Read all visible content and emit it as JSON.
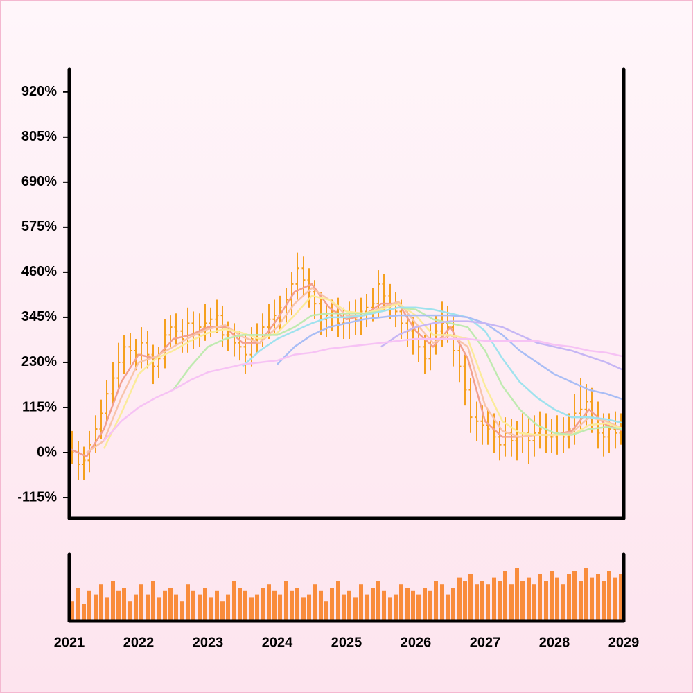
{
  "chart_data": {
    "type": "ohlc",
    "xlim": [
      2021,
      2029
    ],
    "xticks": [
      2021,
      2022,
      2023,
      2024,
      2025,
      2026,
      2027,
      2028,
      2029
    ],
    "ylim": [
      -168,
      978
    ],
    "yticks": [
      {
        "value": -115,
        "label": "-115%"
      },
      {
        "value": 0,
        "label": "0%"
      },
      {
        "value": 115,
        "label": "115%"
      },
      {
        "value": 230,
        "label": "230%"
      },
      {
        "value": 345,
        "label": "345%"
      },
      {
        "value": 460,
        "label": "460%"
      },
      {
        "value": 575,
        "label": "575%"
      },
      {
        "value": 690,
        "label": "690%"
      },
      {
        "value": 805,
        "label": "805%"
      },
      {
        "value": 920,
        "label": "920%"
      }
    ],
    "vlim": [
      0,
      100
    ],
    "color": "#f5a01e",
    "volume_color": "#f98c3c",
    "x": [
      2021.04,
      2021.13,
      2021.21,
      2021.29,
      2021.38,
      2021.46,
      2021.54,
      2021.63,
      2021.71,
      2021.79,
      2021.88,
      2021.96,
      2022.04,
      2022.13,
      2022.21,
      2022.29,
      2022.38,
      2022.46,
      2022.54,
      2022.63,
      2022.71,
      2022.79,
      2022.88,
      2022.96,
      2023.04,
      2023.13,
      2023.21,
      2023.29,
      2023.38,
      2023.46,
      2023.54,
      2023.63,
      2023.71,
      2023.79,
      2023.88,
      2023.96,
      2024.04,
      2024.13,
      2024.21,
      2024.29,
      2024.38,
      2024.46,
      2024.54,
      2024.63,
      2024.71,
      2024.79,
      2024.88,
      2024.96,
      2025.04,
      2025.13,
      2025.21,
      2025.29,
      2025.38,
      2025.46,
      2025.54,
      2025.63,
      2025.71,
      2025.79,
      2025.88,
      2025.96,
      2026.04,
      2026.13,
      2026.21,
      2026.29,
      2026.38,
      2026.46,
      2026.54,
      2026.63,
      2026.71,
      2026.79,
      2026.88,
      2026.96,
      2027.04,
      2027.13,
      2027.21,
      2027.29,
      2027.38,
      2027.46,
      2027.54,
      2027.63,
      2027.71,
      2027.79,
      2027.88,
      2027.96,
      2028.04,
      2028.13,
      2028.21,
      2028.29,
      2028.38,
      2028.46,
      2028.54,
      2028.63,
      2028.71,
      2028.79,
      2028.88,
      2028.96
    ],
    "open": [
      20,
      0,
      -30,
      -20,
      20,
      60,
      100,
      150,
      190,
      230,
      270,
      260,
      250,
      280,
      250,
      220,
      240,
      300,
      320,
      310,
      290,
      330,
      300,
      320,
      330,
      340,
      350,
      300,
      300,
      280,
      270,
      250,
      290,
      300,
      320,
      340,
      350,
      370,
      390,
      430,
      470,
      440,
      410,
      380,
      340,
      350,
      360,
      330,
      330,
      350,
      340,
      360,
      370,
      380,
      430,
      400,
      380,
      360,
      330,
      310,
      290,
      270,
      240,
      290,
      310,
      330,
      320,
      260,
      220,
      160,
      90,
      80,
      70,
      60,
      40,
      20,
      50,
      30,
      40,
      50,
      30,
      50,
      60,
      40,
      40,
      50,
      40,
      60,
      100,
      110,
      130,
      90,
      50,
      40,
      60,
      50
    ],
    "high": [
      55,
      30,
      15,
      55,
      95,
      135,
      185,
      230,
      280,
      300,
      305,
      290,
      320,
      310,
      275,
      270,
      340,
      350,
      355,
      340,
      370,
      360,
      355,
      380,
      370,
      390,
      375,
      335,
      330,
      310,
      300,
      320,
      330,
      355,
      380,
      390,
      400,
      420,
      460,
      510,
      500,
      470,
      440,
      410,
      380,
      390,
      395,
      370,
      385,
      390,
      395,
      405,
      420,
      465,
      455,
      430,
      410,
      390,
      360,
      345,
      320,
      300,
      330,
      350,
      385,
      375,
      350,
      290,
      250,
      190,
      130,
      120,
      110,
      100,
      80,
      90,
      85,
      80,
      100,
      90,
      95,
      105,
      100,
      85,
      95,
      90,
      100,
      150,
      190,
      175,
      165,
      130,
      100,
      100,
      105,
      100
    ],
    "low": [
      -30,
      -70,
      -70,
      -50,
      0,
      35,
      80,
      120,
      165,
      200,
      225,
      210,
      215,
      215,
      175,
      190,
      215,
      265,
      275,
      255,
      255,
      265,
      270,
      285,
      295,
      305,
      270,
      260,
      245,
      235,
      200,
      220,
      255,
      270,
      290,
      305,
      310,
      330,
      350,
      390,
      400,
      370,
      340,
      300,
      295,
      310,
      295,
      290,
      290,
      300,
      300,
      320,
      335,
      345,
      360,
      340,
      320,
      290,
      270,
      250,
      230,
      200,
      210,
      250,
      270,
      280,
      220,
      180,
      120,
      50,
      30,
      20,
      20,
      0,
      -20,
      -10,
      -10,
      -20,
      0,
      -30,
      -10,
      10,
      0,
      0,
      -5,
      0,
      10,
      20,
      60,
      70,
      50,
      10,
      -10,
      0,
      10,
      20
    ],
    "close": [
      0,
      -30,
      -20,
      20,
      60,
      100,
      150,
      190,
      230,
      270,
      260,
      250,
      280,
      250,
      220,
      240,
      300,
      320,
      310,
      290,
      330,
      300,
      320,
      330,
      340,
      350,
      300,
      300,
      280,
      270,
      250,
      290,
      300,
      320,
      340,
      350,
      370,
      390,
      430,
      470,
      440,
      410,
      380,
      340,
      350,
      360,
      330,
      330,
      350,
      340,
      360,
      370,
      380,
      430,
      400,
      380,
      360,
      330,
      310,
      290,
      270,
      240,
      290,
      310,
      330,
      320,
      260,
      220,
      160,
      90,
      80,
      70,
      60,
      40,
      20,
      50,
      30,
      40,
      50,
      30,
      50,
      60,
      40,
      40,
      50,
      40,
      60,
      100,
      110,
      130,
      90,
      50,
      40,
      60,
      50,
      60
    ],
    "volume": [
      30,
      50,
      25,
      45,
      40,
      55,
      35,
      60,
      45,
      50,
      30,
      40,
      55,
      40,
      60,
      35,
      45,
      50,
      40,
      30,
      55,
      45,
      40,
      50,
      35,
      45,
      30,
      40,
      60,
      50,
      45,
      35,
      40,
      50,
      55,
      45,
      40,
      60,
      45,
      50,
      35,
      40,
      55,
      45,
      30,
      50,
      60,
      40,
      45,
      35,
      55,
      40,
      50,
      60,
      45,
      35,
      40,
      55,
      50,
      45,
      40,
      50,
      45,
      60,
      55,
      40,
      50,
      65,
      60,
      70,
      55,
      60,
      55,
      65,
      60,
      75,
      55,
      80,
      60,
      65,
      55,
      70,
      60,
      75,
      65,
      55,
      70,
      75,
      60,
      80,
      65,
      70,
      60,
      75,
      65,
      70
    ],
    "ma_x": [
      2021,
      2021.25,
      2021.5,
      2021.75,
      2022,
      2022.25,
      2022.5,
      2022.75,
      2023,
      2023.25,
      2023.5,
      2023.75,
      2024,
      2024.25,
      2024.5,
      2024.75,
      2025,
      2025.25,
      2025.5,
      2025.75,
      2026,
      2026.25,
      2026.5,
      2026.75,
      2027,
      2027.25,
      2027.5,
      2027.75,
      2028,
      2028.25,
      2028.5,
      2028.75,
      2029
    ],
    "moving_averages": [
      {
        "color": "#f2a08e",
        "values": [
          10,
          -10,
          60,
          180,
          250,
          240,
          290,
          300,
          320,
          320,
          280,
          280,
          340,
          410,
          430,
          370,
          340,
          350,
          380,
          380,
          310,
          270,
          320,
          240,
          80,
          40,
          40,
          45,
          45,
          55,
          110,
          70,
          55
        ]
      },
      {
        "color": "#f8c4aa",
        "values": [
          null,
          0,
          30,
          140,
          230,
          245,
          270,
          295,
          315,
          325,
          295,
          280,
          320,
          380,
          420,
          390,
          350,
          350,
          370,
          385,
          330,
          280,
          300,
          270,
          120,
          55,
          40,
          45,
          45,
          50,
          90,
          80,
          60
        ]
      },
      {
        "color": "#fbeb9a",
        "values": [
          null,
          null,
          10,
          100,
          200,
          240,
          260,
          285,
          305,
          315,
          305,
          290,
          305,
          350,
          400,
          390,
          360,
          355,
          365,
          380,
          350,
          300,
          300,
          290,
          170,
          80,
          50,
          45,
          45,
          45,
          70,
          75,
          60
        ]
      },
      {
        "color": "#bfeab0",
        "values": [
          null,
          null,
          null,
          null,
          null,
          null,
          160,
          220,
          270,
          290,
          300,
          300,
          300,
          320,
          350,
          355,
          355,
          355,
          360,
          370,
          365,
          340,
          330,
          320,
          260,
          170,
          110,
          70,
          50,
          45,
          60,
          65,
          60
        ]
      },
      {
        "color": "#9fe2ee",
        "values": [
          null,
          null,
          null,
          null,
          null,
          null,
          null,
          null,
          null,
          null,
          220,
          260,
          290,
          310,
          330,
          345,
          345,
          350,
          360,
          370,
          370,
          365,
          355,
          345,
          310,
          240,
          180,
          140,
          110,
          90,
          90,
          85,
          75
        ]
      },
      {
        "color": "#a9bdf5",
        "values": [
          null,
          null,
          null,
          null,
          null,
          null,
          null,
          null,
          null,
          null,
          null,
          null,
          225,
          270,
          300,
          320,
          330,
          340,
          345,
          350,
          350,
          350,
          350,
          345,
          330,
          300,
          260,
          230,
          200,
          180,
          160,
          150,
          135
        ]
      },
      {
        "color": "#c6b6f4",
        "values": [
          null,
          null,
          null,
          null,
          null,
          null,
          null,
          null,
          null,
          null,
          null,
          null,
          null,
          null,
          null,
          null,
          null,
          null,
          270,
          300,
          320,
          330,
          335,
          335,
          330,
          320,
          300,
          280,
          270,
          260,
          245,
          230,
          210
        ]
      },
      {
        "color": "#f6c2f4",
        "values": [
          null,
          null,
          30,
          80,
          115,
          140,
          160,
          185,
          205,
          215,
          225,
          230,
          235,
          250,
          255,
          265,
          270,
          275,
          280,
          285,
          290,
          290,
          290,
          290,
          285,
          285,
          285,
          285,
          275,
          270,
          260,
          255,
          245
        ]
      }
    ]
  }
}
